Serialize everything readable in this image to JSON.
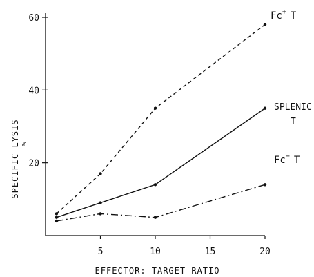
{
  "chart_data": {
    "type": "line",
    "xlabel": "EFFECTOR: TARGET RATIO",
    "ylabel": "% SPECIFIC LYSIS",
    "ylabel_symbol": "%",
    "ylabel_text": "SPECIFIC LYSIS",
    "xlim": [
      0,
      20
    ],
    "ylim": [
      0,
      60
    ],
    "x_ticks": [
      5,
      10,
      15,
      20
    ],
    "x_tick_labels": [
      "5",
      "10",
      "15",
      "20"
    ],
    "y_ticks": [
      20,
      40,
      60
    ],
    "y_tick_labels": [
      "20",
      "40",
      "60"
    ],
    "grid": false,
    "series": [
      {
        "name": "Fc+ T",
        "label_main": "Fc",
        "label_sup": "+",
        "label_tail": "T",
        "style": "dashed",
        "x": [
          1,
          5,
          10,
          20
        ],
        "y": [
          6,
          17,
          35,
          58
        ]
      },
      {
        "name": "Splenic T",
        "label_line1": "SPLENIC",
        "label_line2": "T",
        "style": "solid",
        "x": [
          1,
          5,
          10,
          20
        ],
        "y": [
          5,
          9,
          14,
          35
        ]
      },
      {
        "name": "Fc- T",
        "label_main": "Fc",
        "label_sup": "−",
        "label_tail": "T",
        "style": "dashdot",
        "x": [
          1,
          5,
          10,
          20
        ],
        "y": [
          4,
          6,
          5,
          14
        ]
      }
    ]
  }
}
